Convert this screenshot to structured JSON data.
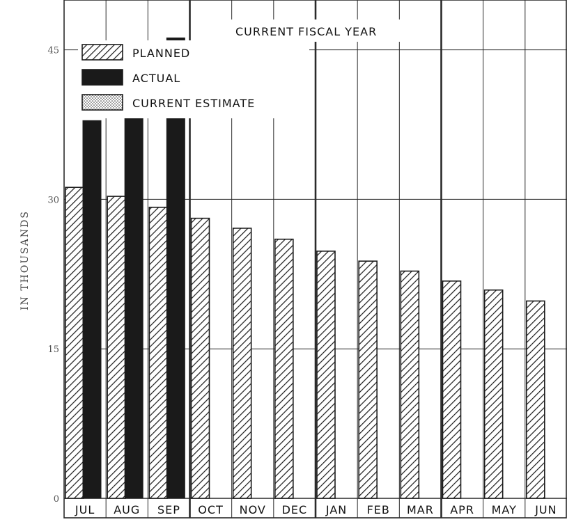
{
  "chart_data": {
    "type": "bar",
    "title": "CURRENT FISCAL YEAR",
    "xlabel": "",
    "ylabel": "IN THOUSANDS",
    "ylim": [
      0,
      50
    ],
    "yticks": [
      0,
      15,
      30,
      45
    ],
    "grid": true,
    "legend_position": "top-left",
    "categories": [
      "JUL",
      "AUG",
      "SEP",
      "OCT",
      "NOV",
      "DEC",
      "JAN",
      "FEB",
      "MAR",
      "APR",
      "MAY",
      "JUN"
    ],
    "series": [
      {
        "name": "PLANNED",
        "style": "hatched",
        "values": [
          31.2,
          30.3,
          29.2,
          28.1,
          27.1,
          26.0,
          24.8,
          23.8,
          22.8,
          21.8,
          20.9,
          19.8
        ]
      },
      {
        "name": "ACTUAL",
        "style": "solid",
        "values": [
          37.9,
          39.5,
          46.2,
          null,
          null,
          null,
          null,
          null,
          null,
          null,
          null,
          null
        ]
      },
      {
        "name": "CURRENT ESTIMATE",
        "style": "stippled",
        "values": [
          null,
          null,
          null,
          null,
          null,
          null,
          null,
          null,
          null,
          null,
          null,
          null
        ]
      }
    ],
    "colors": {
      "ink": "#1a1a1a",
      "grid": "#2a2a2a",
      "hatch_bg": "#ffffff"
    }
  }
}
